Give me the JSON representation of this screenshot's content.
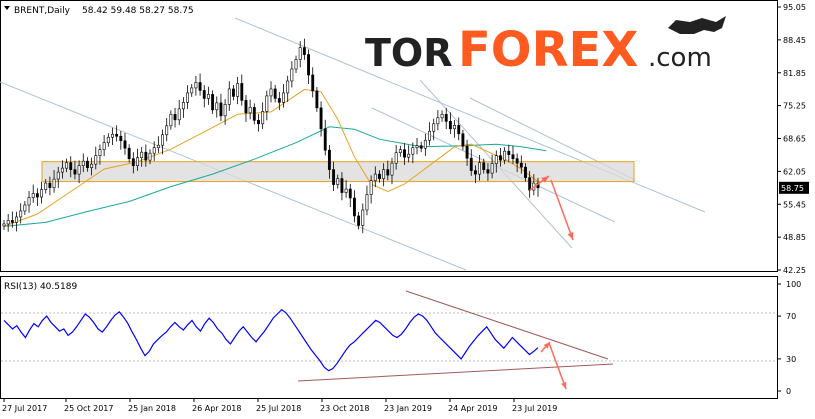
{
  "header": {
    "symbol": "BRENT,Daily",
    "ohlc": "58.42 59.48 58.27 58.75",
    "rsi_label": "RSI(13) 40.5189"
  },
  "logo": {
    "part1": "TOR",
    "part2": "FOREX",
    "part3": ".com"
  },
  "colors": {
    "up_candle": "#ffffff",
    "down_candle": "#000000",
    "candle_outline": "#000000",
    "ma_fast": "#e6a320",
    "ma_slow": "#1aa89a",
    "channel": "#aec3d4",
    "zone_fill": "#d9d9d9",
    "zone_border": "#e6a320",
    "arrow": "#ff6b5b",
    "rsi_line": "#0000ff",
    "rsi_trend": "#a05a5a",
    "price_tag_bg": "#000000"
  },
  "chart_data": [
    {
      "type": "candlestick",
      "title": "",
      "ylim": [
        42.25,
        95.05
      ],
      "yticks": [
        "95.05",
        "88.45",
        "81.85",
        "75.25",
        "68.65",
        "62.05",
        "55.45",
        "48.85",
        "42.25"
      ],
      "xticks": [
        "27 Jul 2017",
        "25 Oct 2017",
        "25 Jan 2018",
        "26 Apr 2018",
        "25 Jul 2018",
        "23 Oct 2018",
        "23 Jan 2019",
        "24 Apr 2019",
        "23 Jul 2019"
      ],
      "last_price": "58.75",
      "series": [
        {
          "kind": "price",
          "closes": [
            51.5,
            52.2,
            51.8,
            52.9,
            54.1,
            55.3,
            56.8,
            57.6,
            56.9,
            58.4,
            59.7,
            58.8,
            60.5,
            61.9,
            62.7,
            63.8,
            62.4,
            61.5,
            63.2,
            64.1,
            62.8,
            63.5,
            65.2,
            66.4,
            67.8,
            68.9,
            69.5,
            69.1,
            68.2,
            66.7,
            64.6,
            63.2,
            64.8,
            65.9,
            64.3,
            65.7,
            66.8,
            67.3,
            69.4,
            71.2,
            73.5,
            72.4,
            74.6,
            75.9,
            77.8,
            78.8,
            79.9,
            78.3,
            76.7,
            77.5,
            74.4,
            75.8,
            73.2,
            75.5,
            78.6,
            77.1,
            79.7,
            76.3,
            73.8,
            74.9,
            72.3,
            71.6,
            74.1,
            77.2,
            78.6,
            76.7,
            75.9,
            77.8,
            80.2,
            82.6,
            84.5,
            86.9,
            85.5,
            81.4,
            78.2,
            74.8,
            70.6,
            66.3,
            62.4,
            59.4,
            60.6,
            57.8,
            58.5,
            56.7,
            53.1,
            51.2,
            54.3,
            57.4,
            60.2,
            61.5,
            60.6,
            62.4,
            61.3,
            63.7,
            65.8,
            66.4,
            64.9,
            65.5,
            66.8,
            67.2,
            66.7,
            68.3,
            70.1,
            71.6,
            72.8,
            73.5,
            72.1,
            70.6,
            71.3,
            69.6,
            67.1,
            64.7,
            62.2,
            61.5,
            63.8,
            62.4,
            61.7,
            63.6,
            65.2,
            64.3,
            66.1,
            65.4,
            64.6,
            63.7,
            62.9,
            60.8,
            58.3,
            59.7,
            58.75
          ]
        },
        {
          "kind": "ma_fast",
          "points": [
            [
              0,
              51.0
            ],
            [
              8,
              53.5
            ],
            [
              16,
              58.0
            ],
            [
              24,
              62.5
            ],
            [
              32,
              64.0
            ],
            [
              40,
              66.5
            ],
            [
              48,
              70.0
            ],
            [
              56,
              73.5
            ],
            [
              64,
              74.0
            ],
            [
              72,
              78.5
            ],
            [
              76,
              78.0
            ],
            [
              80,
              72.5
            ],
            [
              84,
              65.0
            ],
            [
              88,
              59.5
            ],
            [
              92,
              58.0
            ],
            [
              96,
              59.5
            ],
            [
              100,
              62.0
            ],
            [
              104,
              64.5
            ],
            [
              108,
              67.0
            ],
            [
              112,
              67.5
            ],
            [
              116,
              66.0
            ],
            [
              120,
              64.5
            ],
            [
              124,
              62.5
            ],
            [
              128,
              60.0
            ]
          ]
        },
        {
          "kind": "ma_slow",
          "points": [
            [
              0,
              51.0
            ],
            [
              10,
              51.8
            ],
            [
              20,
              54.0
            ],
            [
              30,
              56.0
            ],
            [
              40,
              59.0
            ],
            [
              50,
              61.5
            ],
            [
              60,
              64.5
            ],
            [
              70,
              67.8
            ],
            [
              78,
              71.0
            ],
            [
              84,
              70.5
            ],
            [
              90,
              68.5
            ],
            [
              100,
              67.0
            ],
            [
              110,
              67.2
            ],
            [
              118,
              67.5
            ],
            [
              124,
              67.0
            ],
            [
              130,
              66.2
            ]
          ]
        }
      ],
      "resistance_zone": [
        60.0,
        64.0
      ]
    },
    {
      "type": "line",
      "title": "",
      "ylim": [
        0,
        100
      ],
      "yticks": [
        "100",
        "70",
        "30",
        "0"
      ],
      "series": [
        {
          "kind": "rsi",
          "values": [
            66,
            62,
            58,
            61,
            55,
            50,
            57,
            63,
            60,
            66,
            70,
            64,
            60,
            56,
            58,
            52,
            55,
            60,
            66,
            72,
            69,
            64,
            58,
            55,
            60,
            66,
            71,
            74,
            69,
            63,
            55,
            48,
            40,
            33,
            37,
            44,
            48,
            52,
            55,
            60,
            64,
            60,
            57,
            62,
            66,
            60,
            56,
            63,
            68,
            64,
            58,
            54,
            48,
            44,
            50,
            56,
            60,
            55,
            50,
            46,
            51,
            56,
            62,
            68,
            72,
            76,
            73,
            68,
            62,
            56,
            50,
            44,
            38,
            33,
            28,
            22,
            19,
            21,
            26,
            32,
            38,
            43,
            46,
            50,
            54,
            58,
            62,
            66,
            64,
            60,
            56,
            52,
            50,
            53,
            58,
            64,
            69,
            72,
            70,
            66,
            60,
            54,
            50,
            46,
            42,
            38,
            34,
            30,
            36,
            42,
            47,
            52,
            56,
            60,
            54,
            48,
            44,
            40,
            45,
            50,
            46,
            42,
            38,
            34,
            37,
            40.5
          ]
        }
      ]
    }
  ]
}
